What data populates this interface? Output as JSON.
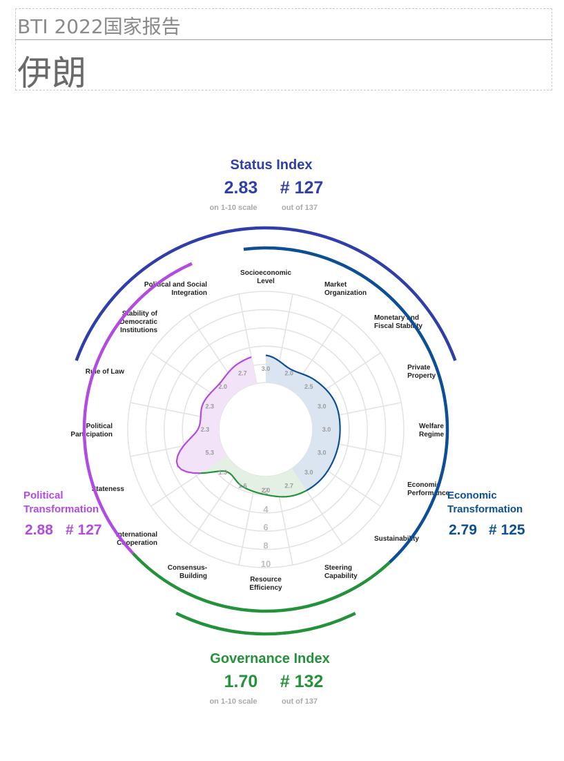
{
  "header": {
    "report_title": "BTI 2022国家报告",
    "country": "伊朗"
  },
  "chart_data": {
    "type": "radar",
    "radial_scale": {
      "min": 0,
      "max": 10,
      "tick_labels": [
        "2",
        "4",
        "6",
        "8",
        "10"
      ]
    },
    "criteria": [
      {
        "label": "Socioeconomic\nLevel",
        "value": 3.0,
        "group": "economic"
      },
      {
        "label": "Market\nOrganization",
        "value": 2.0,
        "group": "economic"
      },
      {
        "label": "Monetary and\nFiscal Stability",
        "value": 2.5,
        "group": "economic"
      },
      {
        "label": "Private\nProperty",
        "value": 3.0,
        "group": "economic"
      },
      {
        "label": "Welfare\nRegime",
        "value": 3.0,
        "group": "economic"
      },
      {
        "label": "Economic\nPerformance",
        "value": 3.0,
        "group": "economic"
      },
      {
        "label": "Sustainability",
        "value": 3.0,
        "group": "economic"
      },
      {
        "label": "Steering\nCapability",
        "value": 2.7,
        "group": "governance"
      },
      {
        "label": "Resource\nEfficiency",
        "value": 2.0,
        "group": "governance"
      },
      {
        "label": "Consensus-\nBuilding",
        "value": 1.6,
        "group": "governance"
      },
      {
        "label": "International\nCooperation",
        "value": 1.3,
        "group": "governance"
      },
      {
        "label": "Stateness",
        "value": 5.3,
        "group": "political"
      },
      {
        "label": "Political\nParticipation",
        "value": 2.3,
        "group": "political"
      },
      {
        "label": "Rule of Law",
        "value": 2.3,
        "group": "political"
      },
      {
        "label": "Stability of\nDemocratic\nInstitutions",
        "value": 2.0,
        "group": "political"
      },
      {
        "label": "Political and Social\nIntegration",
        "value": 2.7,
        "group": "political"
      }
    ],
    "group_colors": {
      "economic": "#0d4f94",
      "governance": "#24923a",
      "political": "#b24be0",
      "status": "#2f3ea8"
    },
    "fill_colors": {
      "economic": "#dbe5f1",
      "governance": "#e3f0e3",
      "political": "#f3e3f8"
    }
  },
  "indices": {
    "status": {
      "title": "Status Index",
      "score": "2.83",
      "rank": "# 127",
      "score_sub": "on 1-10 scale",
      "rank_sub": "out of 137"
    },
    "governance": {
      "title": "Governance Index",
      "score": "1.70",
      "rank": "# 132",
      "score_sub": "on 1-10 scale",
      "rank_sub": "out of 137"
    },
    "political": {
      "title_line1": "Political",
      "title_line2": "Transformation",
      "score": "2.88",
      "rank": "# 127"
    },
    "economic": {
      "title_line1": "Economic",
      "title_line2": "Transformation",
      "score": "2.79",
      "rank": "# 125"
    }
  }
}
